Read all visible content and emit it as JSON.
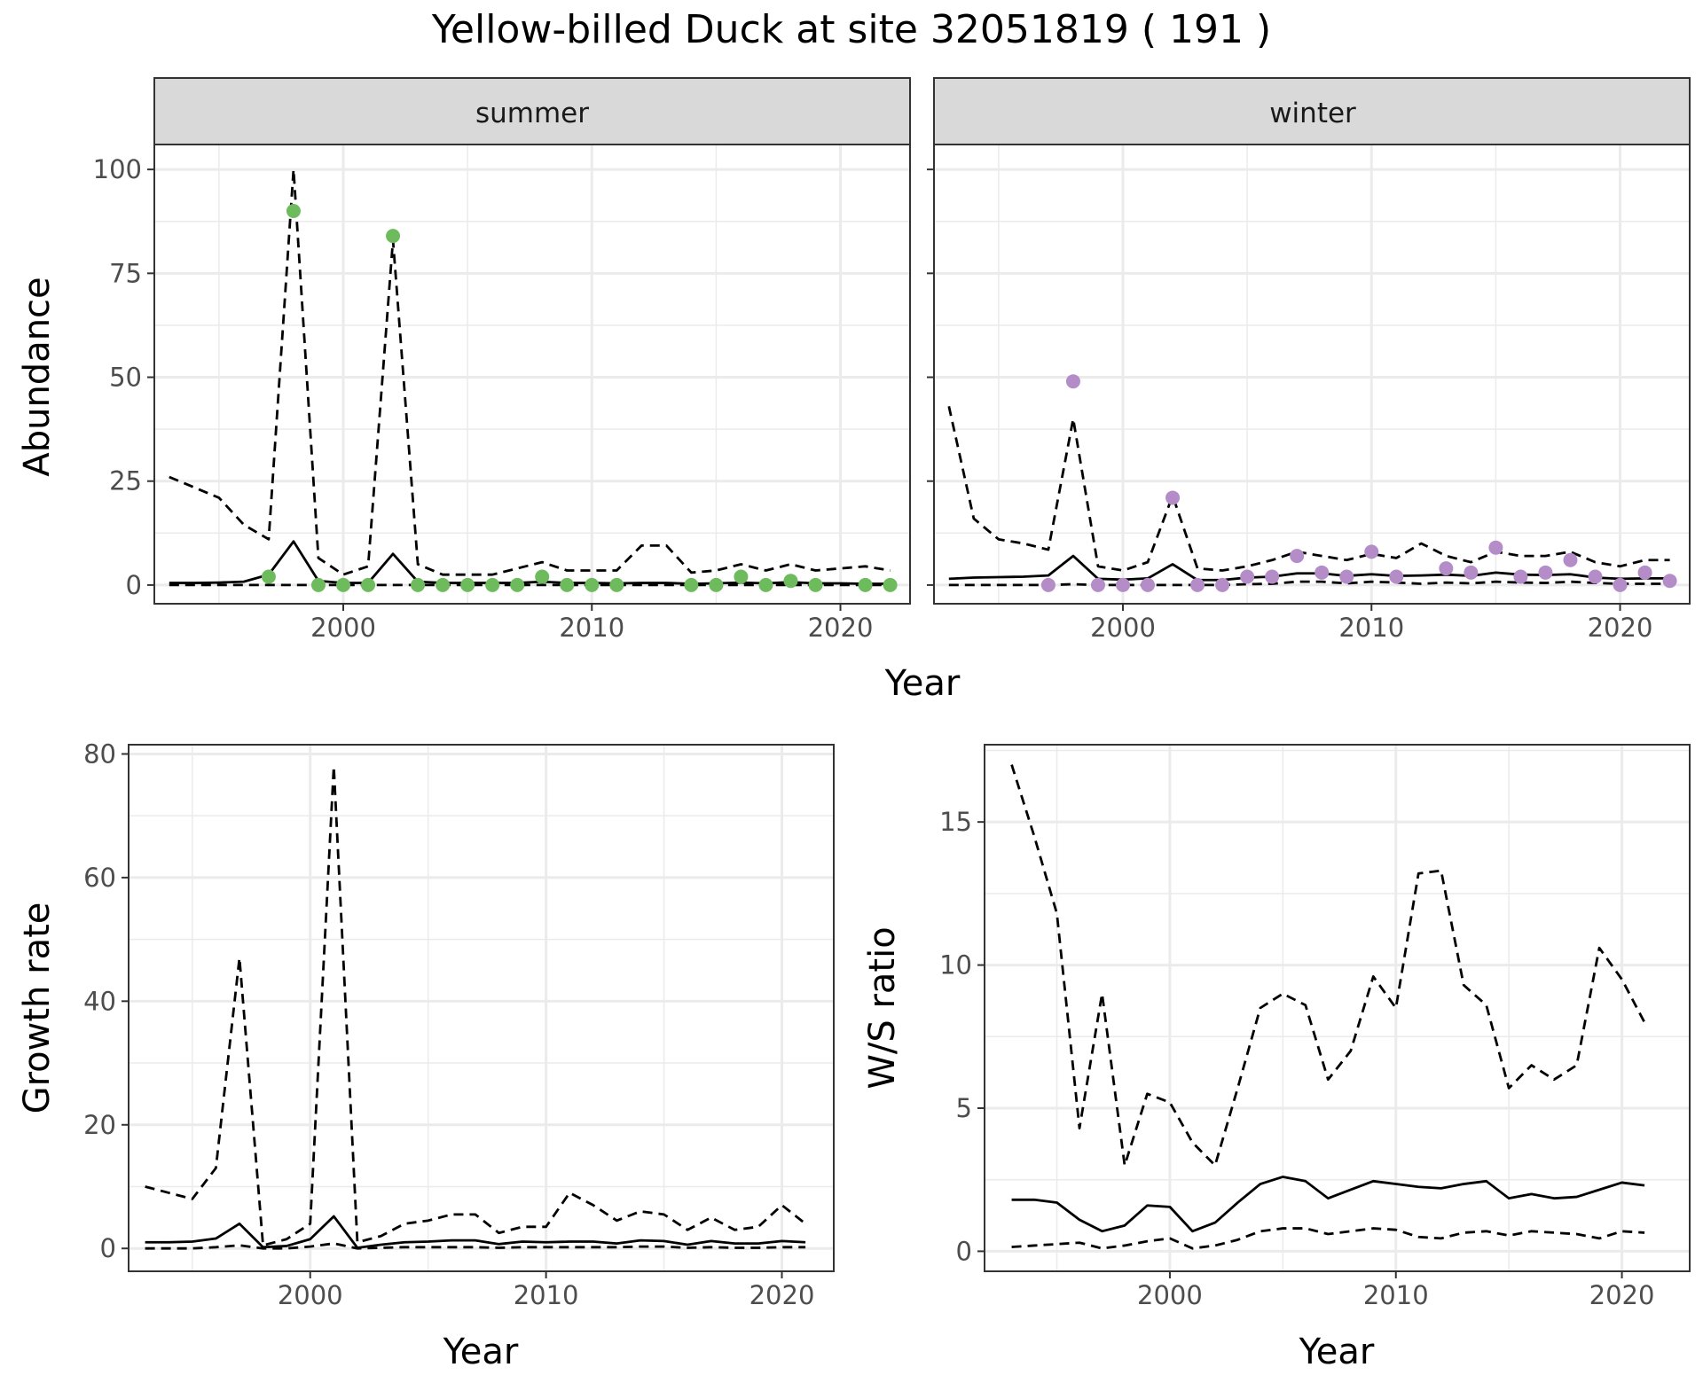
{
  "title": "Yellow-billed Duck at site 32051819 ( 191 )",
  "colors": {
    "summer_points": "#6dbb5c",
    "winter_points": "#b48cc8",
    "line": "#000000",
    "strip_fill": "#d9d9d9",
    "grid": "#ebebeb"
  },
  "chart_data": [
    {
      "type": "line",
      "panel": "summer",
      "strip_label": "summer",
      "xlabel": "Year",
      "ylabel": "Abundance",
      "xlim": [
        1992.4,
        2022.8
      ],
      "ylim": [
        -4.5,
        106
      ],
      "xticks": [
        2000,
        2010,
        2020
      ],
      "yticks": [
        0,
        25,
        50,
        75,
        100
      ],
      "x": [
        1993,
        1994,
        1995,
        1996,
        1997,
        1998,
        1999,
        2000,
        2001,
        2002,
        2003,
        2004,
        2005,
        2006,
        2007,
        2008,
        2009,
        2010,
        2011,
        2012,
        2013,
        2014,
        2015,
        2016,
        2017,
        2018,
        2019,
        2020,
        2021,
        2022
      ],
      "series": [
        {
          "role": "mean",
          "style": "solid",
          "values": [
            0.5,
            0.5,
            0.6,
            0.8,
            2.5,
            10.5,
            1.0,
            0.5,
            0.5,
            7.5,
            0.8,
            0.5,
            0.5,
            0.5,
            0.5,
            0.8,
            0.5,
            0.5,
            0.4,
            0.5,
            0.5,
            0.3,
            0.4,
            0.6,
            0.4,
            0.7,
            0.4,
            0.4,
            0.3,
            0.3
          ]
        },
        {
          "role": "upper",
          "style": "dashed",
          "values": [
            26,
            23.5,
            21,
            14.5,
            11,
            100,
            6.5,
            2.5,
            4.5,
            83,
            5,
            2.5,
            2.5,
            2.5,
            4,
            5.5,
            3.5,
            3.5,
            3.5,
            9.5,
            9.5,
            3,
            3.5,
            5,
            3.5,
            5,
            3.5,
            4,
            4.5,
            3.5
          ]
        },
        {
          "role": "lower",
          "style": "dashed",
          "values": [
            0,
            0,
            0,
            0,
            0,
            0,
            0,
            0,
            0,
            0,
            0,
            0,
            0,
            0,
            0,
            0,
            0,
            0,
            0,
            0,
            0,
            0,
            0,
            0,
            0,
            0,
            0,
            0,
            0,
            0
          ]
        }
      ],
      "points": {
        "x": [
          1997,
          1998,
          1999,
          2000,
          2001,
          2002,
          2003,
          2004,
          2005,
          2006,
          2007,
          2008,
          2009,
          2010,
          2011,
          2014,
          2015,
          2016,
          2017,
          2018,
          2019,
          2021,
          2022
        ],
        "y": [
          2,
          90,
          0,
          0,
          0,
          84,
          0,
          0,
          0,
          0,
          0,
          2,
          0,
          0,
          0,
          0,
          0,
          2,
          0,
          1,
          0,
          0,
          0
        ]
      }
    },
    {
      "type": "line",
      "panel": "winter",
      "strip_label": "winter",
      "xlabel": "Year",
      "ylabel": "Abundance",
      "xlim": [
        1992.4,
        2022.8
      ],
      "ylim": [
        -4.5,
        106
      ],
      "xticks": [
        2000,
        2010,
        2020
      ],
      "yticks": [
        0,
        25,
        50,
        75,
        100
      ],
      "x": [
        1993,
        1994,
        1995,
        1996,
        1997,
        1998,
        1999,
        2000,
        2001,
        2002,
        2003,
        2004,
        2005,
        2006,
        2007,
        2008,
        2009,
        2010,
        2011,
        2012,
        2013,
        2014,
        2015,
        2016,
        2017,
        2018,
        2019,
        2020,
        2021,
        2022
      ],
      "series": [
        {
          "role": "mean",
          "style": "solid",
          "values": [
            1.5,
            1.8,
            1.9,
            2.0,
            2.3,
            7.0,
            1.5,
            1.3,
            1.6,
            5.0,
            1.2,
            1.2,
            1.8,
            2.0,
            2.8,
            2.8,
            2.2,
            2.6,
            2.2,
            2.3,
            2.5,
            2.2,
            3.0,
            2.5,
            2.4,
            2.6,
            1.8,
            1.5,
            1.6,
            1.6
          ]
        },
        {
          "role": "upper",
          "style": "dashed",
          "values": [
            43,
            16,
            11,
            10,
            8.5,
            40,
            4.5,
            3.5,
            5.5,
            21.5,
            4,
            3.5,
            4.5,
            6,
            8,
            7,
            6,
            7.5,
            6.5,
            10,
            7,
            5.5,
            8,
            7,
            7,
            8,
            5.5,
            4.5,
            6,
            6
          ]
        },
        {
          "role": "lower",
          "style": "dashed",
          "values": [
            0,
            0,
            0,
            0,
            0,
            0.2,
            0,
            0,
            0,
            0,
            0,
            0,
            0.2,
            0.3,
            0.8,
            0.8,
            0.4,
            0.8,
            0.6,
            0.3,
            0.6,
            0.4,
            0.8,
            0.6,
            0.5,
            0.8,
            0.5,
            0.3,
            0.3,
            0.3
          ]
        }
      ],
      "points": {
        "x": [
          1997,
          1998,
          1999,
          2000,
          2001,
          2002,
          2003,
          2004,
          2005,
          2006,
          2007,
          2008,
          2009,
          2010,
          2011,
          2013,
          2014,
          2015,
          2016,
          2017,
          2018,
          2019,
          2020,
          2021,
          2022
        ],
        "y": [
          0,
          49,
          0,
          0,
          0,
          21,
          0,
          0,
          2,
          2,
          7,
          3,
          2,
          8,
          2,
          4,
          3,
          9,
          2,
          3,
          6,
          2,
          0,
          3,
          1
        ]
      }
    },
    {
      "type": "line",
      "panel": "growth",
      "xlabel": "Year",
      "ylabel": "Growth rate",
      "xlim": [
        1992.3,
        2022.2
      ],
      "ylim": [
        -3.7,
        81.5
      ],
      "xticks": [
        2000,
        2010,
        2020
      ],
      "yticks": [
        0,
        20,
        40,
        60,
        80
      ],
      "x": [
        1993,
        1994,
        1995,
        1996,
        1997,
        1998,
        1999,
        2000,
        2001,
        2002,
        2003,
        2004,
        2005,
        2006,
        2007,
        2008,
        2009,
        2010,
        2011,
        2012,
        2013,
        2014,
        2015,
        2016,
        2017,
        2018,
        2019,
        2020,
        2021
      ],
      "series": [
        {
          "role": "mean",
          "style": "solid",
          "values": [
            1.0,
            1.0,
            1.1,
            1.6,
            4.0,
            0.2,
            0.4,
            1.5,
            5.2,
            0.1,
            0.6,
            1.0,
            1.1,
            1.3,
            1.3,
            0.7,
            1.1,
            1.0,
            1.1,
            1.1,
            0.8,
            1.3,
            1.2,
            0.6,
            1.2,
            0.8,
            0.8,
            1.2,
            1.0
          ]
        },
        {
          "role": "upper",
          "style": "dashed",
          "values": [
            10,
            9,
            8,
            13,
            47,
            0.5,
            1.5,
            4,
            78,
            1,
            2,
            4,
            4.5,
            5.5,
            5.5,
            2.5,
            3.5,
            3.5,
            9,
            7,
            4.5,
            6,
            5.5,
            3,
            5,
            3,
            3.5,
            7,
            4
          ]
        },
        {
          "role": "lower",
          "style": "dashed",
          "values": [
            0,
            0,
            0,
            0.2,
            0.5,
            0,
            0,
            0.3,
            0.8,
            0,
            0.1,
            0.2,
            0.2,
            0.2,
            0.2,
            0.1,
            0.2,
            0.2,
            0.2,
            0.2,
            0.2,
            0.3,
            0.3,
            0.1,
            0.2,
            0.1,
            0.1,
            0.2,
            0.2
          ]
        }
      ]
    },
    {
      "type": "line",
      "panel": "ratio",
      "xlabel": "Year",
      "ylabel": "W/S ratio",
      "xlim": [
        1991.8,
        2023.0
      ],
      "ylim": [
        -0.7,
        17.7
      ],
      "xticks": [
        2000,
        2010,
        2020
      ],
      "yticks": [
        0,
        5,
        10,
        15
      ],
      "x": [
        1993,
        1994,
        1995,
        1996,
        1997,
        1998,
        1999,
        2000,
        2001,
        2002,
        2003,
        2004,
        2005,
        2006,
        2007,
        2008,
        2009,
        2010,
        2011,
        2012,
        2013,
        2014,
        2015,
        2016,
        2017,
        2018,
        2019,
        2020,
        2021
      ],
      "series": [
        {
          "role": "mean",
          "style": "solid",
          "values": [
            1.8,
            1.8,
            1.7,
            1.1,
            0.7,
            0.9,
            1.6,
            1.55,
            0.7,
            1.0,
            1.7,
            2.35,
            2.6,
            2.45,
            1.85,
            2.15,
            2.45,
            2.35,
            2.25,
            2.2,
            2.35,
            2.45,
            1.85,
            2.0,
            1.85,
            1.9,
            2.15,
            2.4,
            2.3
          ]
        },
        {
          "role": "upper",
          "style": "dashed",
          "values": [
            17,
            14.5,
            11.8,
            4.3,
            9,
            3,
            5.5,
            5.2,
            3.8,
            3,
            5.7,
            8.5,
            9,
            8.6,
            6,
            7,
            9.6,
            8.5,
            13.2,
            13.3,
            9.3,
            8.6,
            5.7,
            6.5,
            6,
            6.5,
            10.6,
            9.5,
            8
          ]
        },
        {
          "role": "lower",
          "style": "dashed",
          "values": [
            0.15,
            0.2,
            0.25,
            0.3,
            0.1,
            0.2,
            0.35,
            0.45,
            0.1,
            0.2,
            0.4,
            0.7,
            0.8,
            0.8,
            0.6,
            0.7,
            0.8,
            0.75,
            0.5,
            0.45,
            0.65,
            0.7,
            0.55,
            0.7,
            0.65,
            0.6,
            0.45,
            0.7,
            0.65
          ]
        }
      ]
    }
  ]
}
